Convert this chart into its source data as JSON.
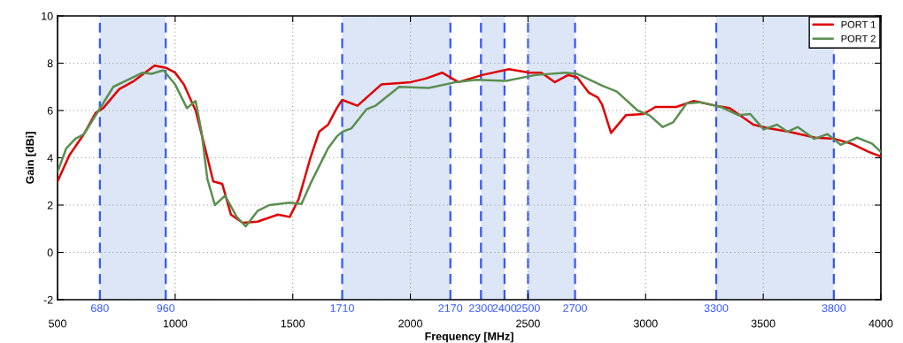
{
  "chart_data": {
    "type": "line",
    "xlabel": "Frequency [MHz]",
    "ylabel": "Gain [dBi]",
    "xlim": [
      500,
      4000
    ],
    "xticks": [
      500,
      1000,
      1500,
      2000,
      2500,
      3000,
      3500,
      4000
    ],
    "ylim": [
      -2,
      10
    ],
    "yticks": [
      -2,
      0,
      2,
      4,
      6,
      8,
      10
    ],
    "grid": true,
    "legend": "top right",
    "line_style": "solid",
    "bands": [
      {
        "axis": "x",
        "from": 680,
        "to": 960,
        "color": "#dce6f7"
      },
      {
        "axis": "x",
        "from": 1710,
        "to": 2170,
        "color": "#dce6f7"
      },
      {
        "axis": "x",
        "from": 2300,
        "to": 2400,
        "color": "#dce6f7"
      },
      {
        "axis": "x",
        "from": 2500,
        "to": 2700,
        "color": "#dce6f7"
      },
      {
        "axis": "x",
        "from": 3300,
        "to": 3800,
        "color": "#dce6f7"
      }
    ],
    "ref_lines": [
      {
        "axis": "x",
        "value": 680,
        "label": "680",
        "color": "#3355ff",
        "line_style": "dashed"
      },
      {
        "axis": "x",
        "value": 960,
        "label": "960",
        "color": "#3355ff",
        "line_style": "dashed"
      },
      {
        "axis": "x",
        "value": 1710,
        "label": "1710",
        "color": "#3355ff",
        "line_style": "dashed"
      },
      {
        "axis": "x",
        "value": 2170,
        "label": "2170",
        "color": "#3355ff",
        "line_style": "dashed"
      },
      {
        "axis": "x",
        "value": 2300,
        "label": "2300",
        "color": "#3355ff",
        "line_style": "dashed"
      },
      {
        "axis": "x",
        "value": 2400,
        "label": "2400",
        "color": "#3355ff",
        "line_style": "dashed"
      },
      {
        "axis": "x",
        "value": 2500,
        "label": "2500",
        "color": "#3355ff",
        "line_style": "dashed"
      },
      {
        "axis": "x",
        "value": 2700,
        "label": "2700",
        "color": "#3355ff",
        "line_style": "dashed"
      },
      {
        "axis": "x",
        "value": 3300,
        "label": "3300",
        "color": "#3355ff",
        "line_style": "dashed"
      },
      {
        "axis": "x",
        "value": 3800,
        "label": "3800",
        "color": "#3355ff",
        "line_style": "dashed"
      }
    ],
    "series": [
      {
        "name": "PORT 1",
        "color": "#e00000",
        "x": [
          500,
          550,
          612,
          662,
          694,
          762,
          825,
          912,
          962,
          1000,
          1037,
          1087,
          1125,
          1162,
          1200,
          1237,
          1287,
          1350,
          1437,
          1487,
          1525,
          1575,
          1612,
          1650,
          1687,
          1710,
          1775,
          1876,
          2002,
          2065,
          2135,
          2204,
          2305,
          2419,
          2507,
          2557,
          2614,
          2671,
          2709,
          2759,
          2797,
          2815,
          2853,
          2916,
          2991,
          3042,
          3130,
          3205,
          3300,
          3357,
          3458,
          3521,
          3609,
          3722,
          3804,
          3874,
          3949,
          4000
        ],
        "values": [
          3.0,
          4.1,
          5.0,
          5.9,
          6.1,
          6.9,
          7.25,
          7.9,
          7.8,
          7.6,
          7.1,
          6.0,
          4.5,
          3.0,
          2.9,
          1.6,
          1.25,
          1.3,
          1.6,
          1.5,
          2.25,
          4.0,
          5.1,
          5.4,
          6.1,
          6.45,
          6.2,
          7.1,
          7.2,
          7.35,
          7.6,
          7.2,
          7.5,
          7.75,
          7.6,
          7.6,
          7.2,
          7.5,
          7.4,
          6.75,
          6.55,
          6.25,
          5.05,
          5.8,
          5.85,
          6.15,
          6.15,
          6.4,
          6.2,
          6.1,
          5.4,
          5.25,
          5.1,
          4.85,
          4.8,
          4.6,
          4.25,
          4.05
        ]
      },
      {
        "name": "PORT 2",
        "color": "#5a8f50",
        "x": [
          500,
          537,
          575,
          612,
          675,
          737,
          800,
          862,
          900,
          950,
          1000,
          1050,
          1087,
          1112,
          1137,
          1169,
          1212,
          1262,
          1300,
          1350,
          1400,
          1487,
          1537,
          1575,
          1625,
          1650,
          1687,
          1710,
          1750,
          1813,
          1851,
          1952,
          2078,
          2192,
          2280,
          2406,
          2532,
          2658,
          2709,
          2784,
          2815,
          2878,
          2966,
          3016,
          3073,
          3117,
          3174,
          3231,
          3319,
          3395,
          3445,
          3502,
          3559,
          3603,
          3647,
          3716,
          3773,
          3829,
          3899,
          3962,
          4000
        ],
        "values": [
          3.4,
          4.4,
          4.8,
          5.0,
          6.0,
          7.0,
          7.3,
          7.6,
          7.55,
          7.7,
          7.1,
          6.1,
          6.4,
          5.1,
          3.1,
          2.0,
          2.4,
          1.5,
          1.1,
          1.75,
          2.0,
          2.1,
          2.05,
          2.9,
          3.9,
          4.4,
          4.9,
          5.1,
          5.25,
          6.05,
          6.2,
          7.0,
          6.95,
          7.2,
          7.3,
          7.25,
          7.5,
          7.6,
          7.55,
          7.2,
          7.05,
          6.8,
          6.0,
          5.8,
          5.3,
          5.5,
          6.3,
          6.35,
          6.15,
          5.8,
          5.85,
          5.2,
          5.4,
          5.1,
          5.3,
          4.8,
          5.0,
          4.55,
          4.85,
          4.6,
          4.25
        ]
      }
    ]
  }
}
